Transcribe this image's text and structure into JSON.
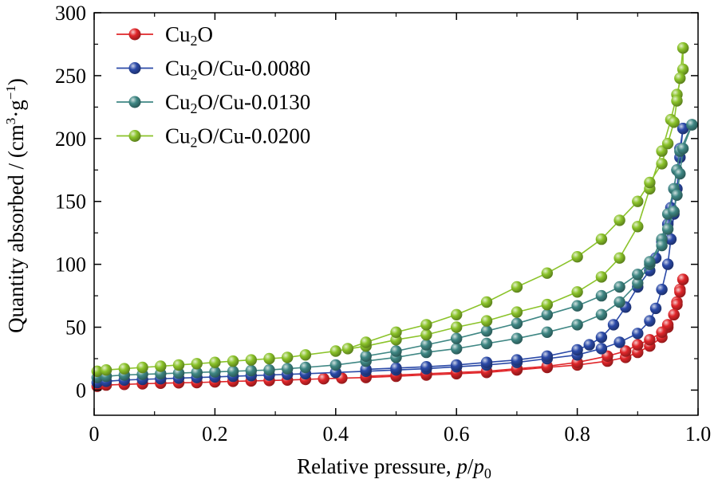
{
  "chart_data": {
    "type": "line",
    "xlabel": "Relative pressure, p/p0",
    "ylabel": "Quantity absorbed / (cm3·g−1)",
    "xlim": [
      0,
      1.0
    ],
    "ylim": [
      -20,
      300
    ],
    "x_ticks": [
      "0",
      "0.2",
      "0.4",
      "0.6",
      "0.8",
      "1.0"
    ],
    "y_ticks": [
      "0",
      "50",
      "100",
      "150",
      "200",
      "250",
      "300"
    ],
    "legend_position": "top-left",
    "series": [
      {
        "name": "Cu2O",
        "color": "#e0262a",
        "adsorption": [
          [
            0.005,
            3
          ],
          [
            0.02,
            4
          ],
          [
            0.05,
            4.5
          ],
          [
            0.08,
            5
          ],
          [
            0.11,
            5.5
          ],
          [
            0.14,
            5.8
          ],
          [
            0.17,
            6
          ],
          [
            0.2,
            6.5
          ],
          [
            0.23,
            7
          ],
          [
            0.26,
            7.3
          ],
          [
            0.29,
            7.6
          ],
          [
            0.32,
            8
          ],
          [
            0.35,
            8.5
          ],
          [
            0.38,
            9
          ],
          [
            0.41,
            9.5
          ],
          [
            0.45,
            10
          ],
          [
            0.5,
            11
          ],
          [
            0.55,
            12
          ],
          [
            0.6,
            13
          ],
          [
            0.65,
            14
          ],
          [
            0.7,
            16
          ],
          [
            0.75,
            18
          ],
          [
            0.8,
            20
          ],
          [
            0.85,
            23
          ],
          [
            0.88,
            26
          ],
          [
            0.9,
            30
          ],
          [
            0.92,
            35
          ],
          [
            0.94,
            42
          ],
          [
            0.95,
            50
          ],
          [
            0.96,
            60
          ],
          [
            0.965,
            70
          ],
          [
            0.97,
            80
          ],
          [
            0.975,
            88
          ]
        ],
        "desorption": [
          [
            0.975,
            88
          ],
          [
            0.97,
            78
          ],
          [
            0.965,
            68
          ],
          [
            0.96,
            60
          ],
          [
            0.95,
            52
          ],
          [
            0.94,
            46
          ],
          [
            0.92,
            40
          ],
          [
            0.9,
            36
          ],
          [
            0.88,
            31
          ],
          [
            0.85,
            27
          ],
          [
            0.8,
            22
          ],
          [
            0.75,
            19
          ],
          [
            0.7,
            17
          ],
          [
            0.65,
            15
          ],
          [
            0.6,
            14
          ],
          [
            0.55,
            13
          ],
          [
            0.5,
            12
          ],
          [
            0.45,
            11
          ]
        ]
      },
      {
        "name": "Cu2O/Cu-0.0080",
        "color": "#2b4aa8",
        "adsorption": [
          [
            0.005,
            6
          ],
          [
            0.02,
            7
          ],
          [
            0.05,
            8
          ],
          [
            0.08,
            8.5
          ],
          [
            0.11,
            9
          ],
          [
            0.14,
            9.5
          ],
          [
            0.17,
            10
          ],
          [
            0.2,
            10.5
          ],
          [
            0.23,
            11
          ],
          [
            0.26,
            11.5
          ],
          [
            0.29,
            12
          ],
          [
            0.32,
            12.5
          ],
          [
            0.35,
            13
          ],
          [
            0.4,
            14
          ],
          [
            0.45,
            15
          ],
          [
            0.5,
            16
          ],
          [
            0.55,
            17
          ],
          [
            0.6,
            18.5
          ],
          [
            0.65,
            20
          ],
          [
            0.7,
            22
          ],
          [
            0.75,
            25
          ],
          [
            0.8,
            28
          ],
          [
            0.84,
            33
          ],
          [
            0.87,
            38
          ],
          [
            0.9,
            45
          ],
          [
            0.92,
            55
          ],
          [
            0.93,
            65
          ],
          [
            0.94,
            80
          ],
          [
            0.95,
            100
          ],
          [
            0.955,
            120
          ],
          [
            0.96,
            140
          ],
          [
            0.965,
            160
          ],
          [
            0.97,
            185
          ],
          [
            0.975,
            208
          ]
        ],
        "desorption": [
          [
            0.975,
            208
          ],
          [
            0.97,
            192
          ],
          [
            0.965,
            175
          ],
          [
            0.96,
            160
          ],
          [
            0.955,
            145
          ],
          [
            0.95,
            132
          ],
          [
            0.94,
            118
          ],
          [
            0.93,
            105
          ],
          [
            0.92,
            95
          ],
          [
            0.9,
            82
          ],
          [
            0.88,
            66
          ],
          [
            0.86,
            52
          ],
          [
            0.84,
            42
          ],
          [
            0.82,
            36
          ],
          [
            0.8,
            32
          ],
          [
            0.75,
            27
          ],
          [
            0.7,
            24
          ],
          [
            0.65,
            22
          ],
          [
            0.6,
            20
          ],
          [
            0.55,
            18.5
          ],
          [
            0.5,
            17.5
          ],
          [
            0.45,
            16.5
          ]
        ]
      },
      {
        "name": "Cu2O/Cu-0.0130",
        "color": "#3f8784",
        "adsorption": [
          [
            0.005,
            10
          ],
          [
            0.02,
            11
          ],
          [
            0.05,
            12
          ],
          [
            0.08,
            12.5
          ],
          [
            0.11,
            13
          ],
          [
            0.14,
            13.5
          ],
          [
            0.17,
            14
          ],
          [
            0.2,
            14.5
          ],
          [
            0.23,
            15
          ],
          [
            0.26,
            15.5
          ],
          [
            0.29,
            16
          ],
          [
            0.32,
            17
          ],
          [
            0.35,
            18
          ],
          [
            0.4,
            20
          ],
          [
            0.45,
            23
          ],
          [
            0.5,
            26
          ],
          [
            0.55,
            30
          ],
          [
            0.6,
            33
          ],
          [
            0.65,
            37
          ],
          [
            0.7,
            41
          ],
          [
            0.75,
            46
          ],
          [
            0.8,
            52
          ],
          [
            0.84,
            60
          ],
          [
            0.87,
            70
          ],
          [
            0.9,
            85
          ],
          [
            0.92,
            100
          ],
          [
            0.94,
            120
          ],
          [
            0.95,
            140
          ],
          [
            0.96,
            160
          ],
          [
            0.965,
            175
          ],
          [
            0.97,
            190
          ],
          [
            0.99,
            211
          ]
        ],
        "desorption": [
          [
            0.99,
            211
          ],
          [
            0.975,
            192
          ],
          [
            0.97,
            172
          ],
          [
            0.965,
            155
          ],
          [
            0.96,
            142
          ],
          [
            0.95,
            128
          ],
          [
            0.94,
            115
          ],
          [
            0.92,
            102
          ],
          [
            0.9,
            92
          ],
          [
            0.87,
            82
          ],
          [
            0.84,
            75
          ],
          [
            0.8,
            67
          ],
          [
            0.75,
            60
          ],
          [
            0.7,
            53
          ],
          [
            0.65,
            47
          ],
          [
            0.6,
            41
          ],
          [
            0.55,
            36
          ],
          [
            0.5,
            31
          ],
          [
            0.45,
            27
          ]
        ]
      },
      {
        "name": "Cu2O/Cu-0.0200",
        "color": "#8bc32a",
        "adsorption": [
          [
            0.005,
            15
          ],
          [
            0.02,
            16
          ],
          [
            0.05,
            17
          ],
          [
            0.08,
            18
          ],
          [
            0.11,
            19
          ],
          [
            0.14,
            20
          ],
          [
            0.17,
            21
          ],
          [
            0.2,
            22
          ],
          [
            0.23,
            23
          ],
          [
            0.26,
            24
          ],
          [
            0.29,
            25
          ],
          [
            0.32,
            26
          ],
          [
            0.35,
            28
          ],
          [
            0.4,
            31
          ],
          [
            0.45,
            35
          ],
          [
            0.5,
            40
          ],
          [
            0.55,
            44
          ],
          [
            0.6,
            50
          ],
          [
            0.65,
            55
          ],
          [
            0.7,
            62
          ],
          [
            0.75,
            68
          ],
          [
            0.8,
            78
          ],
          [
            0.84,
            90
          ],
          [
            0.87,
            105
          ],
          [
            0.9,
            130
          ],
          [
            0.92,
            160
          ],
          [
            0.94,
            190
          ],
          [
            0.955,
            215
          ],
          [
            0.965,
            235
          ],
          [
            0.975,
            255
          ],
          [
            0.975,
            272
          ]
        ],
        "desorption": [
          [
            0.975,
            272
          ],
          [
            0.97,
            248
          ],
          [
            0.965,
            230
          ],
          [
            0.96,
            213
          ],
          [
            0.95,
            196
          ],
          [
            0.94,
            180
          ],
          [
            0.92,
            165
          ],
          [
            0.9,
            150
          ],
          [
            0.87,
            135
          ],
          [
            0.84,
            120
          ],
          [
            0.8,
            106
          ],
          [
            0.75,
            93
          ],
          [
            0.7,
            82
          ],
          [
            0.65,
            70
          ],
          [
            0.6,
            60
          ],
          [
            0.55,
            52
          ],
          [
            0.5,
            46
          ],
          [
            0.45,
            38
          ],
          [
            0.42,
            33
          ]
        ]
      }
    ]
  }
}
